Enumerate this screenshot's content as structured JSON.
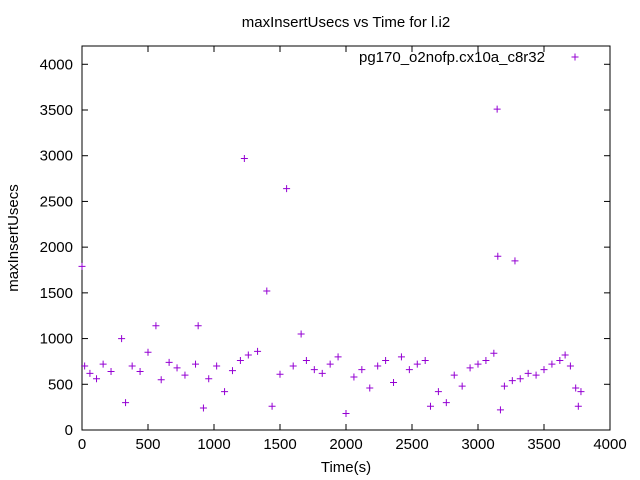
{
  "chart_data": {
    "type": "scatter",
    "title": "maxInsertUsecs vs Time for l.i2",
    "xlabel": "Time(s)",
    "ylabel": "maxInsertUsecs",
    "xlim": [
      0,
      4000
    ],
    "ylim": [
      0,
      4200
    ],
    "x_ticks": [
      "0",
      "500",
      "1000",
      "1500",
      "2000",
      "2500",
      "3000",
      "3500",
      "4000"
    ],
    "y_ticks": [
      "0",
      "500",
      "1000",
      "1500",
      "2000",
      "2500",
      "3000",
      "3500",
      "4000"
    ],
    "grid": false,
    "legend_position": "top-right",
    "series": [
      {
        "name": "pg170_o2nofp.cx10a_c8r32",
        "color": "#9400d3",
        "marker": "plus",
        "points": [
          [
            0,
            1790
          ],
          [
            20,
            700
          ],
          [
            60,
            620
          ],
          [
            110,
            560
          ],
          [
            160,
            720
          ],
          [
            220,
            640
          ],
          [
            300,
            1000
          ],
          [
            330,
            300
          ],
          [
            380,
            700
          ],
          [
            440,
            640
          ],
          [
            500,
            850
          ],
          [
            560,
            1140
          ],
          [
            600,
            550
          ],
          [
            660,
            740
          ],
          [
            720,
            680
          ],
          [
            780,
            600
          ],
          [
            860,
            720
          ],
          [
            880,
            1140
          ],
          [
            920,
            240
          ],
          [
            960,
            560
          ],
          [
            1020,
            700
          ],
          [
            1080,
            420
          ],
          [
            1140,
            650
          ],
          [
            1200,
            760
          ],
          [
            1230,
            2970
          ],
          [
            1260,
            820
          ],
          [
            1330,
            860
          ],
          [
            1400,
            1520
          ],
          [
            1440,
            260
          ],
          [
            1500,
            610
          ],
          [
            1550,
            2640
          ],
          [
            1600,
            700
          ],
          [
            1660,
            1050
          ],
          [
            1700,
            760
          ],
          [
            1760,
            660
          ],
          [
            1820,
            620
          ],
          [
            1880,
            720
          ],
          [
            1940,
            800
          ],
          [
            2000,
            180
          ],
          [
            2060,
            580
          ],
          [
            2120,
            660
          ],
          [
            2180,
            460
          ],
          [
            2240,
            700
          ],
          [
            2300,
            760
          ],
          [
            2360,
            520
          ],
          [
            2420,
            800
          ],
          [
            2480,
            660
          ],
          [
            2540,
            720
          ],
          [
            2600,
            760
          ],
          [
            2640,
            260
          ],
          [
            2700,
            420
          ],
          [
            2760,
            300
          ],
          [
            2820,
            600
          ],
          [
            2880,
            480
          ],
          [
            2940,
            680
          ],
          [
            3000,
            720
          ],
          [
            3060,
            760
          ],
          [
            3120,
            840
          ],
          [
            3145,
            3510
          ],
          [
            3150,
            1900
          ],
          [
            3170,
            220
          ],
          [
            3200,
            480
          ],
          [
            3260,
            540
          ],
          [
            3280,
            1850
          ],
          [
            3320,
            560
          ],
          [
            3380,
            620
          ],
          [
            3440,
            600
          ],
          [
            3500,
            660
          ],
          [
            3560,
            720
          ],
          [
            3620,
            760
          ],
          [
            3660,
            820
          ],
          [
            3700,
            700
          ],
          [
            3740,
            460
          ],
          [
            3760,
            260
          ],
          [
            3780,
            420
          ]
        ]
      }
    ]
  }
}
